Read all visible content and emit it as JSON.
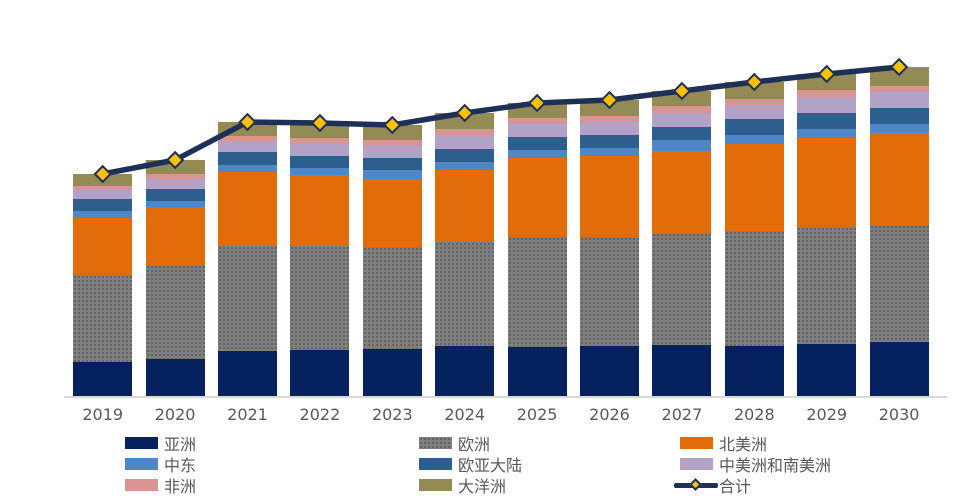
{
  "chart_data": {
    "type": "bar",
    "subtype": "stacked-bars-with-total-line",
    "title": "",
    "xlabel": "",
    "ylabel": "",
    "y_axis_visible": false,
    "grid": false,
    "categories": [
      "2019",
      "2020",
      "2021",
      "2022",
      "2023",
      "2024",
      "2025",
      "2026",
      "2027",
      "2028",
      "2029",
      "2030"
    ],
    "stack_order_bottom_to_top": [
      "亚洲",
      "欧洲",
      "北美洲",
      "中东",
      "欧亚大陆",
      "中美洲和南美洲",
      "非洲",
      "大洋洲"
    ],
    "series": [
      {
        "name": "亚洲",
        "color": "#05225e",
        "values": [
          34,
          37,
          45,
          46,
          47,
          50,
          49,
          50,
          51,
          50,
          52,
          54
        ]
      },
      {
        "name": "欧洲",
        "color": "#7f7f7f",
        "pattern": "dots",
        "values": [
          87,
          94,
          105,
          104,
          102,
          104,
          110,
          109,
          112,
          115,
          117,
          117
        ]
      },
      {
        "name": "北美洲",
        "color": "#e36c0a",
        "values": [
          57,
          58,
          74,
          71,
          68,
          72,
          79,
          81,
          82,
          87,
          89,
          92
        ]
      },
      {
        "name": "中东",
        "color": "#4f86c8",
        "values": [
          7,
          6,
          7,
          7,
          9,
          8,
          8,
          8,
          11,
          9,
          9,
          9
        ]
      },
      {
        "name": "欧亚大陆",
        "color": "#2e5e8e",
        "values": [
          12,
          12,
          13,
          12,
          12,
          13,
          13,
          13,
          13,
          16,
          16,
          16
        ]
      },
      {
        "name": "中美洲和南美洲",
        "color": "#b3a2c7",
        "values": [
          9,
          10,
          11,
          12,
          12,
          14,
          13,
          13,
          14,
          13,
          16,
          16
        ]
      },
      {
        "name": "非洲",
        "color": "#d99594",
        "values": [
          4,
          5,
          5,
          6,
          6,
          6,
          6,
          6,
          7,
          7,
          7,
          6
        ]
      },
      {
        "name": "大洋洲",
        "color": "#948a54",
        "values": [
          12,
          14,
          14,
          15,
          15,
          16,
          15,
          16,
          15,
          17,
          16,
          19
        ]
      }
    ],
    "line_series": {
      "name": "合计",
      "color": "#1e3057",
      "marker": "diamond",
      "marker_fill": "#ffc000",
      "marker_stroke": "#1e3057",
      "values": [
        222,
        236,
        274,
        273,
        271,
        283,
        293,
        296,
        305,
        314,
        322,
        329
      ]
    },
    "value_note": "no y-axis shown; values estimated in relative units"
  },
  "x_axis": {
    "labels": [
      "2019",
      "2020",
      "2021",
      "2022",
      "2023",
      "2024",
      "2025",
      "2026",
      "2027",
      "2028",
      "2029",
      "2030"
    ],
    "text_color": "#595959",
    "axis_line_color": "#d9d9d9"
  },
  "legend": {
    "text_color": "#595959",
    "columns": [
      {
        "items": [
          {
            "label": "亚洲",
            "type": "box"
          },
          {
            "label": "中东",
            "type": "box"
          },
          {
            "label": "非洲",
            "type": "box"
          }
        ]
      },
      {
        "items": [
          {
            "label": "欧洲",
            "type": "box"
          },
          {
            "label": "欧亚大陆",
            "type": "box"
          },
          {
            "label": "大洋洲",
            "type": "box"
          }
        ]
      },
      {
        "items": [
          {
            "label": "北美洲",
            "type": "box"
          },
          {
            "label": "中美洲和南美洲",
            "type": "box"
          },
          {
            "label": "合计",
            "type": "line-marker"
          }
        ]
      }
    ]
  }
}
